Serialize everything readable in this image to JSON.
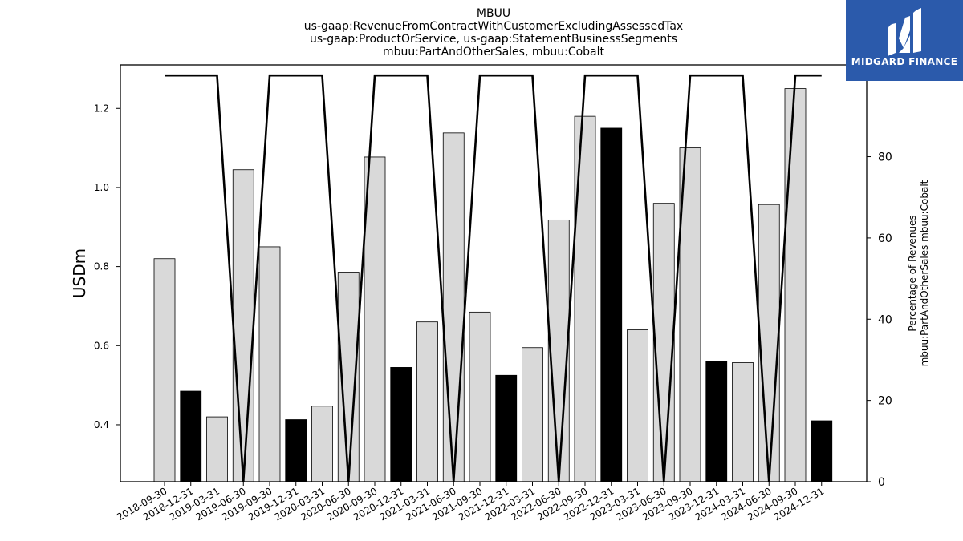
{
  "brand": {
    "name": "MIDGARD FINANCE",
    "background": "#2b5aab",
    "logo_icon": "midgard-m-icon"
  },
  "chart_data": {
    "type": "bar",
    "title_lines": [
      "MBUU",
      "us-gaap:RevenueFromContractWithCustomerExcludingAssessedTax",
      "us-gaap:ProductOrService, us-gaap:StatementBusinessSegments",
      "mbuu:PartAndOtherSales, mbuu:Cobalt"
    ],
    "categories": [
      "2018-09-30",
      "2018-12-31",
      "2019-03-31",
      "2019-06-30",
      "2019-09-30",
      "2019-12-31",
      "2020-03-31",
      "2020-06-30",
      "2020-09-30",
      "2020-12-31",
      "2021-03-31",
      "2021-06-30",
      "2021-09-30",
      "2021-12-31",
      "2022-03-31",
      "2022-06-30",
      "2022-09-30",
      "2022-12-31",
      "2023-03-31",
      "2023-06-30",
      "2023-09-30",
      "2023-12-31",
      "2024-03-31",
      "2024-06-30",
      "2024-09-30",
      "2024-12-31"
    ],
    "series": [
      {
        "axis": "left",
        "kind": "bar",
        "values": [
          0.82,
          0.485,
          0.42,
          1.045,
          0.85,
          0.413,
          0.447,
          0.786,
          1.077,
          0.545,
          0.66,
          1.138,
          0.685,
          0.525,
          0.595,
          0.918,
          1.18,
          1.15,
          0.64,
          0.96,
          1.1,
          0.56,
          0.557,
          0.957,
          1.25,
          0.41
        ],
        "highlight": [
          false,
          true,
          false,
          false,
          false,
          true,
          false,
          false,
          false,
          true,
          false,
          false,
          false,
          true,
          false,
          false,
          false,
          true,
          false,
          false,
          false,
          true,
          false,
          false,
          false,
          true
        ],
        "color": "#d9d9d9",
        "highlight_color": "#000000"
      },
      {
        "axis": "right",
        "kind": "line",
        "values": [
          100,
          100,
          100,
          0,
          100,
          100,
          100,
          0,
          100,
          100,
          100,
          0,
          100,
          100,
          100,
          0,
          100,
          100,
          100,
          0,
          100,
          100,
          100,
          0,
          100,
          100
        ],
        "color": "#000000"
      }
    ],
    "ylabel": "USDm",
    "ylabel_right": [
      "Percentage of Revenues",
      "mbuu:PartAndOtherSales mbuu:Cobalt"
    ],
    "ylim": [
      0.256,
      1.31
    ],
    "yticks": [
      0.4,
      0.6,
      0.8,
      1.0,
      1.2
    ],
    "ylim_right": [
      0,
      102.6
    ],
    "yticks_right": [
      0,
      20,
      40,
      60,
      80,
      100
    ],
    "grid": false
  }
}
